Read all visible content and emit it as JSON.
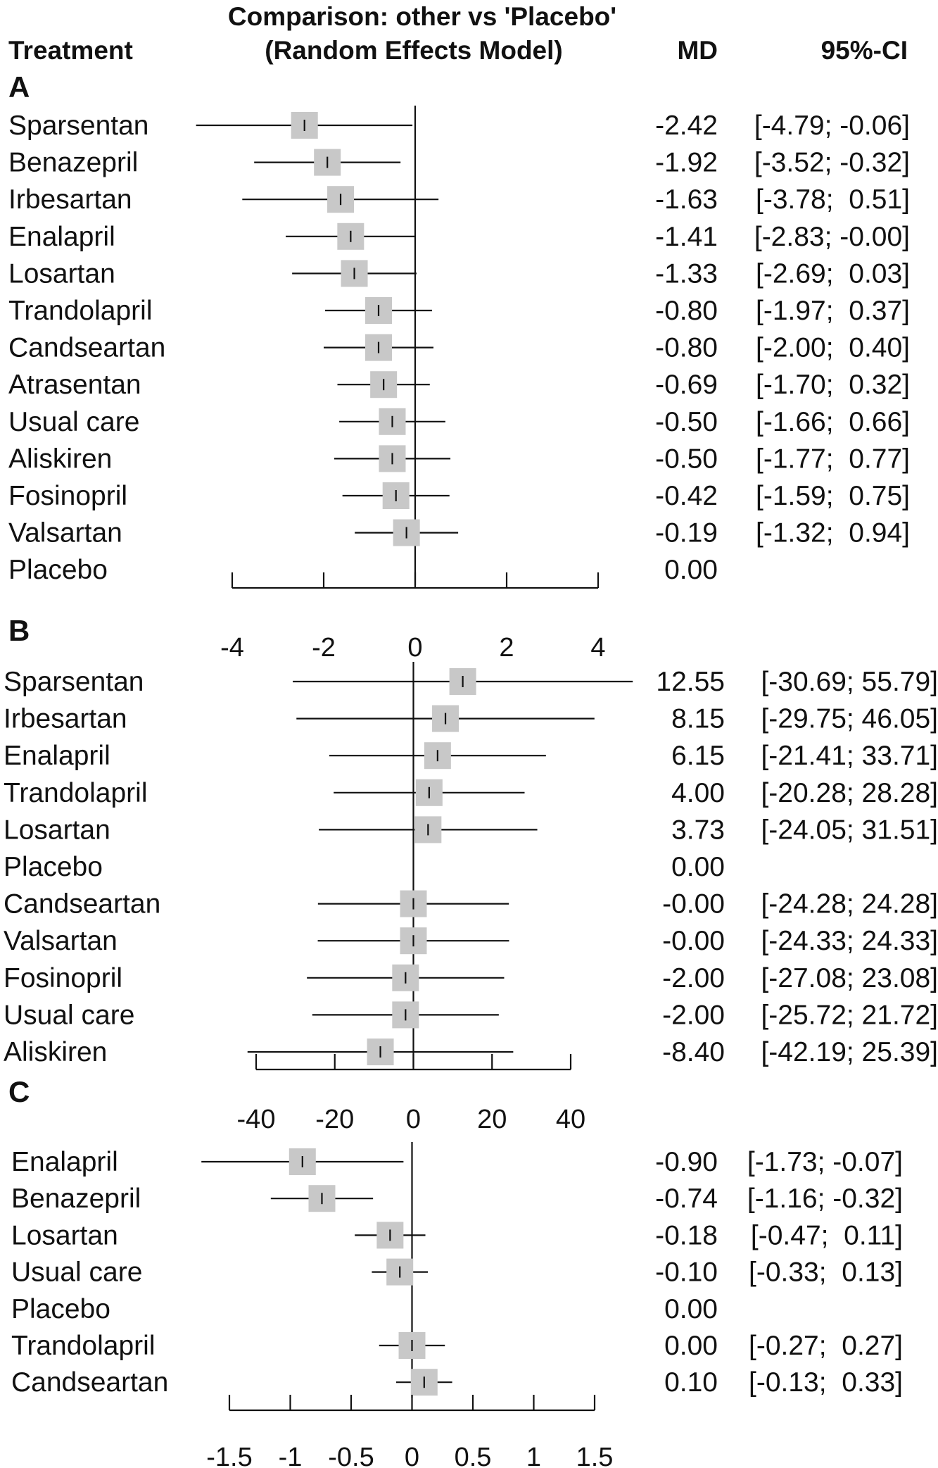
{
  "header": {
    "treatment": "Treatment",
    "comparison_line1": "Comparison: other vs 'Placebo'",
    "comparison_line2": "(Random Effects Model)",
    "md": "MD",
    "ci": "95%-CI"
  },
  "chart_data": [
    {
      "type": "forest",
      "panel": "A",
      "xlim": [
        -4,
        4
      ],
      "ticks": [
        -4,
        -2,
        0,
        2,
        4
      ],
      "tick_labels": [
        "-4",
        "-2",
        "0",
        "2",
        "4"
      ],
      "rows": [
        {
          "treatment": "Sparsentan",
          "md": -2.42,
          "lower": -4.79,
          "upper": -0.06,
          "md_text": "-2.42",
          "ci_text": "[-4.79; -0.06]"
        },
        {
          "treatment": "Benazepril",
          "md": -1.92,
          "lower": -3.52,
          "upper": -0.32,
          "md_text": "-1.92",
          "ci_text": "[-3.52; -0.32]"
        },
        {
          "treatment": "Irbesartan",
          "md": -1.63,
          "lower": -3.78,
          "upper": 0.51,
          "md_text": "-1.63",
          "ci_text": "[-3.78;  0.51]"
        },
        {
          "treatment": "Enalapril",
          "md": -1.41,
          "lower": -2.83,
          "upper": -0.0,
          "md_text": "-1.41",
          "ci_text": "[-2.83; -0.00]"
        },
        {
          "treatment": "Losartan",
          "md": -1.33,
          "lower": -2.69,
          "upper": 0.03,
          "md_text": "-1.33",
          "ci_text": "[-2.69;  0.03]"
        },
        {
          "treatment": "Trandolapril",
          "md": -0.8,
          "lower": -1.97,
          "upper": 0.37,
          "md_text": "-0.80",
          "ci_text": "[-1.97;  0.37]"
        },
        {
          "treatment": "Candseartan",
          "md": -0.8,
          "lower": -2.0,
          "upper": 0.4,
          "md_text": "-0.80",
          "ci_text": "[-2.00;  0.40]"
        },
        {
          "treatment": "Atrasentan",
          "md": -0.69,
          "lower": -1.7,
          "upper": 0.32,
          "md_text": "-0.69",
          "ci_text": "[-1.70;  0.32]"
        },
        {
          "treatment": "Usual care",
          "md": -0.5,
          "lower": -1.66,
          "upper": 0.66,
          "md_text": "-0.50",
          "ci_text": "[-1.66;  0.66]"
        },
        {
          "treatment": "Aliskiren",
          "md": -0.5,
          "lower": -1.77,
          "upper": 0.77,
          "md_text": "-0.50",
          "ci_text": "[-1.77;  0.77]"
        },
        {
          "treatment": "Fosinopril",
          "md": -0.42,
          "lower": -1.59,
          "upper": 0.75,
          "md_text": "-0.42",
          "ci_text": "[-1.59;  0.75]"
        },
        {
          "treatment": "Valsartan",
          "md": -0.19,
          "lower": -1.32,
          "upper": 0.94,
          "md_text": "-0.19",
          "ci_text": "[-1.32;  0.94]"
        },
        {
          "treatment": "Placebo",
          "md": 0.0,
          "lower": null,
          "upper": null,
          "md_text": "0.00",
          "ci_text": ""
        }
      ]
    },
    {
      "type": "forest",
      "panel": "B",
      "xlim": [
        -40,
        40
      ],
      "ticks": [
        -40,
        -20,
        0,
        20,
        40
      ],
      "tick_labels": [
        "-40",
        "-20",
        "0",
        "20",
        "40"
      ],
      "rows": [
        {
          "treatment": "Sparsentan",
          "md": 12.55,
          "lower": -30.69,
          "upper": 55.79,
          "md_text": "12.55",
          "ci_text": "[-30.69; 55.79]"
        },
        {
          "treatment": "Irbesartan",
          "md": 8.15,
          "lower": -29.75,
          "upper": 46.05,
          "md_text": "8.15",
          "ci_text": "[-29.75; 46.05]"
        },
        {
          "treatment": "Enalapril",
          "md": 6.15,
          "lower": -21.41,
          "upper": 33.71,
          "md_text": "6.15",
          "ci_text": "[-21.41; 33.71]"
        },
        {
          "treatment": "Trandolapril",
          "md": 4.0,
          "lower": -20.28,
          "upper": 28.28,
          "md_text": "4.00",
          "ci_text": "[-20.28; 28.28]"
        },
        {
          "treatment": "Losartan",
          "md": 3.73,
          "lower": -24.05,
          "upper": 31.51,
          "md_text": "3.73",
          "ci_text": "[-24.05; 31.51]"
        },
        {
          "treatment": "Placebo",
          "md": 0.0,
          "lower": null,
          "upper": null,
          "md_text": "0.00",
          "ci_text": ""
        },
        {
          "treatment": "Candseartan",
          "md": -0.0,
          "lower": -24.28,
          "upper": 24.28,
          "md_text": "-0.00",
          "ci_text": "[-24.28; 24.28]"
        },
        {
          "treatment": "Valsartan",
          "md": -0.0,
          "lower": -24.33,
          "upper": 24.33,
          "md_text": "-0.00",
          "ci_text": "[-24.33; 24.33]"
        },
        {
          "treatment": "Fosinopril",
          "md": -2.0,
          "lower": -27.08,
          "upper": 23.08,
          "md_text": "-2.00",
          "ci_text": "[-27.08; 23.08]"
        },
        {
          "treatment": "Usual care",
          "md": -2.0,
          "lower": -25.72,
          "upper": 21.72,
          "md_text": "-2.00",
          "ci_text": "[-25.72; 21.72]"
        },
        {
          "treatment": "Aliskiren",
          "md": -8.4,
          "lower": -42.19,
          "upper": 25.39,
          "md_text": "-8.40",
          "ci_text": "[-42.19; 25.39]"
        }
      ]
    },
    {
      "type": "forest",
      "panel": "C",
      "xlim": [
        -1.5,
        1.5
      ],
      "ticks": [
        -1.5,
        -1,
        -0.5,
        0,
        0.5,
        1,
        1.5
      ],
      "tick_labels": [
        "-1.5",
        "-1",
        "-0.5",
        "0",
        "0.5",
        "1",
        "1.5"
      ],
      "rows": [
        {
          "treatment": "Enalapril",
          "md": -0.9,
          "lower": -1.73,
          "upper": -0.07,
          "md_text": "-0.90",
          "ci_text": "[-1.73; -0.07]"
        },
        {
          "treatment": "Benazepril",
          "md": -0.74,
          "lower": -1.16,
          "upper": -0.32,
          "md_text": "-0.74",
          "ci_text": "[-1.16; -0.32]"
        },
        {
          "treatment": "Losartan",
          "md": -0.18,
          "lower": -0.47,
          "upper": 0.11,
          "md_text": "-0.18",
          "ci_text": "[-0.47;  0.11]"
        },
        {
          "treatment": "Usual care",
          "md": -0.1,
          "lower": -0.33,
          "upper": 0.13,
          "md_text": "-0.10",
          "ci_text": "[-0.33;  0.13]"
        },
        {
          "treatment": "Placebo",
          "md": 0.0,
          "lower": null,
          "upper": null,
          "md_text": "0.00",
          "ci_text": ""
        },
        {
          "treatment": "Trandolapril",
          "md": 0.0,
          "lower": -0.27,
          "upper": 0.27,
          "md_text": "0.00",
          "ci_text": "[-0.27;  0.27]"
        },
        {
          "treatment": "Candseartan",
          "md": 0.1,
          "lower": -0.13,
          "upper": 0.33,
          "md_text": "0.10",
          "ci_text": "[-0.13;  0.33]"
        }
      ]
    }
  ]
}
